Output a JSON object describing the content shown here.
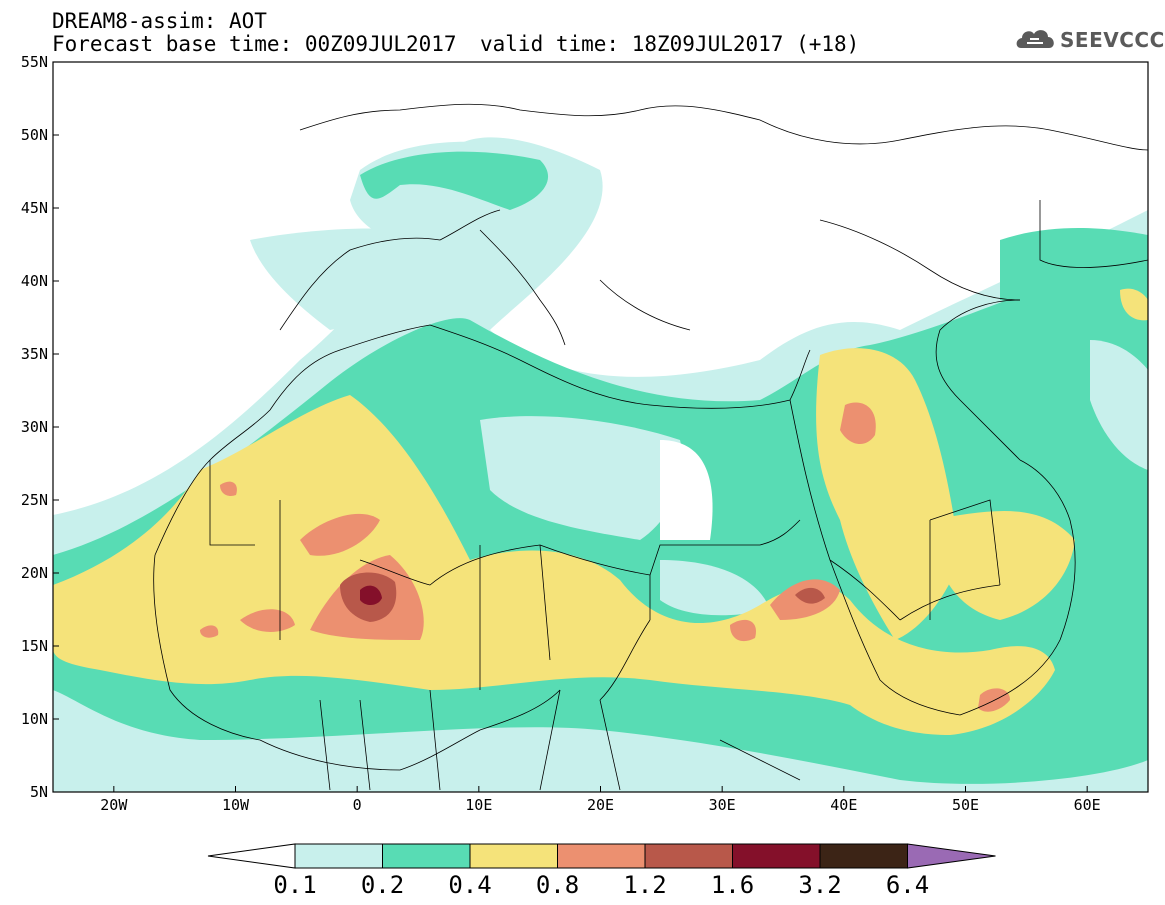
{
  "header": {
    "title_line1": "DREAM8-assim: AOT",
    "title_line2": "Forecast base time: 00Z09JUL2017",
    "valid_time": "valid time: 18Z09JUL2017 (+18)",
    "logo_text": "SEEVCCC",
    "logo_icon": "cloud-icon"
  },
  "map": {
    "lat_range": [
      5,
      55
    ],
    "lon_range": [
      -25,
      65
    ],
    "lat_labels": [
      "55N",
      "50N",
      "45N",
      "40N",
      "35N",
      "30N",
      "25N",
      "20N",
      "15N",
      "10N",
      "5N"
    ],
    "lon_labels": [
      "20W",
      "10W",
      "0",
      "10E",
      "20E",
      "30E",
      "40E",
      "50E",
      "60E"
    ]
  },
  "colorbar": {
    "labels": [
      "0.1",
      "0.2",
      "0.4",
      "0.8",
      "1.2",
      "1.6",
      "3.2",
      "6.4"
    ],
    "colors": [
      "#c8f0ec",
      "#58dcb4",
      "#f5e37a",
      "#ec9070",
      "#b8584a",
      "#84102a",
      "#3c2416",
      "#9a6ab4"
    ]
  }
}
